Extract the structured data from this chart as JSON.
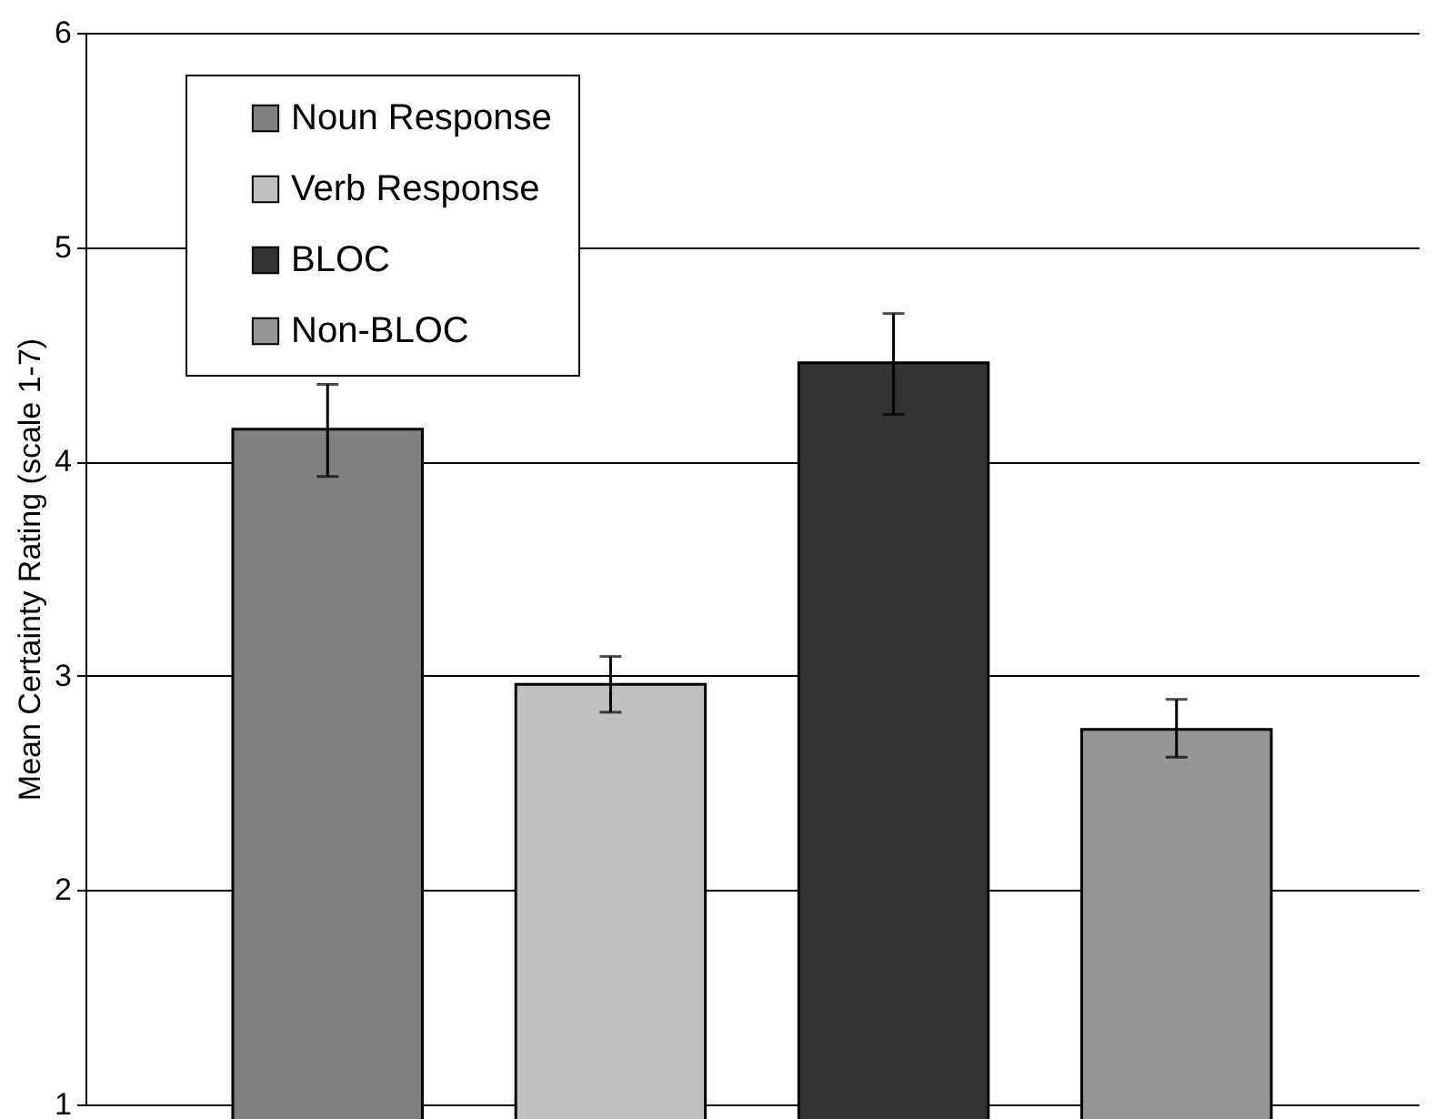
{
  "chart_data": {
    "type": "bar",
    "ylabel": "Mean Certainty Rating (scale 1-7)",
    "categories": [
      null
    ],
    "series": [
      {
        "name": "Noun Response",
        "color": "#808080",
        "values": [
          4.15
        ],
        "errors": [
          [
            3.93,
            4.36
          ]
        ]
      },
      {
        "name": "Verb Response",
        "color": "#c0c0c0",
        "values": [
          2.96
        ],
        "errors": [
          [
            2.83,
            3.09
          ]
        ]
      },
      {
        "name": "BLOC",
        "color": "#333333",
        "values": [
          4.46
        ],
        "errors": [
          [
            4.22,
            4.69
          ]
        ]
      },
      {
        "name": "Non-BLOC",
        "color": "#969696",
        "values": [
          2.75
        ],
        "errors": [
          [
            2.62,
            2.89
          ]
        ]
      }
    ],
    "ylim": [
      1,
      6
    ],
    "yticks": [
      1,
      2,
      3,
      4,
      5,
      6
    ],
    "grid": "y",
    "legend": "top left"
  }
}
